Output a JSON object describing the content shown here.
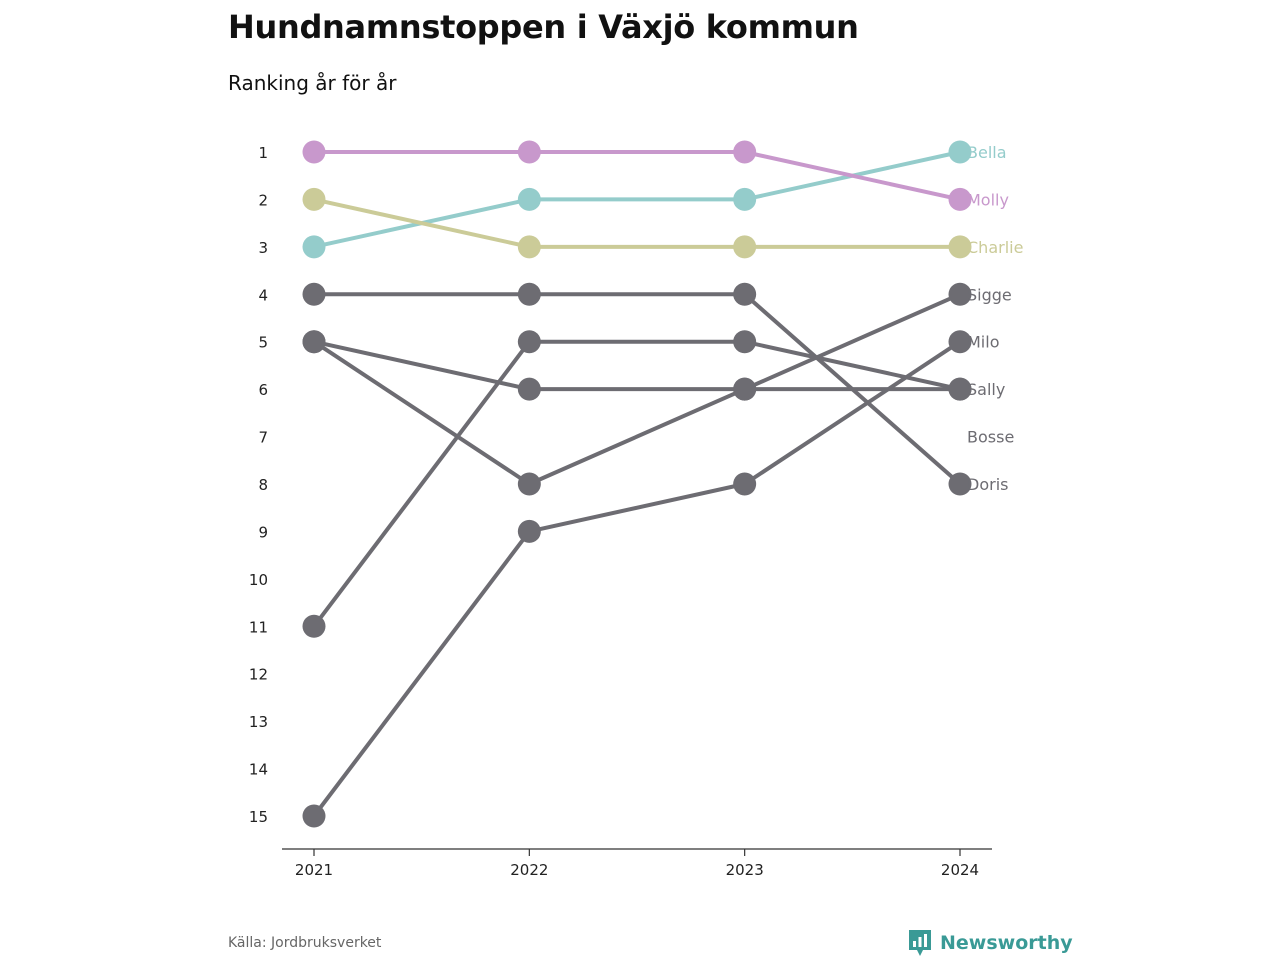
{
  "header": {
    "title": "Hundnamnstoppen i Växjö kommun",
    "subtitle": "Ranking år för år"
  },
  "footer": {
    "source": "Källa: Jordbruksverket",
    "brand": "Newsworthy"
  },
  "colors": {
    "grey": "#6d6c72",
    "bella": "#94cccb",
    "molly": "#c898cc",
    "charlie": "#cbcb98",
    "brand": "#3a9a96"
  },
  "icons": {
    "brand_logo": "newsworthy-logo-icon"
  },
  "chart_data": {
    "type": "line",
    "subtype": "bump",
    "x": [
      "2021",
      "2022",
      "2023",
      "2024"
    ],
    "y_ticks": [
      "1",
      "2",
      "3",
      "4",
      "5",
      "6",
      "7",
      "8",
      "9",
      "10",
      "11",
      "12",
      "13",
      "14",
      "15"
    ],
    "y_reversed": true,
    "ylim": [
      1,
      15
    ],
    "grid": false,
    "series": [
      {
        "name": "Bella",
        "values": [
          3,
          2,
          2,
          1
        ],
        "color": "#94cccb"
      },
      {
        "name": "Molly",
        "values": [
          1,
          1,
          1,
          2
        ],
        "color": "#c898cc"
      },
      {
        "name": "Charlie",
        "values": [
          2,
          3,
          3,
          3
        ],
        "color": "#cbcb98"
      },
      {
        "name": "Sigge",
        "values": [
          5,
          8,
          6,
          4
        ],
        "color": "#6d6c72"
      },
      {
        "name": "Milo",
        "values": [
          15,
          9,
          8,
          5
        ],
        "color": "#6d6c72"
      },
      {
        "name": "Sally",
        "values": [
          5,
          6,
          6,
          6
        ],
        "color": "#6d6c72"
      },
      {
        "name": "Bosse",
        "values": [
          11,
          5,
          5,
          6
        ],
        "color": "#6d6c72"
      },
      {
        "name": "Doris",
        "values": [
          4,
          4,
          4,
          8
        ],
        "color": "#6d6c72"
      }
    ],
    "end_labels": [
      {
        "text": "Bella",
        "rank": 1,
        "color": "#94cccb"
      },
      {
        "text": "Molly",
        "rank": 2,
        "color": "#c898cc"
      },
      {
        "text": "Charlie",
        "rank": 3,
        "color": "#cbcb98"
      },
      {
        "text": "Sigge",
        "rank": 4,
        "color": "#6d6c72"
      },
      {
        "text": "Milo",
        "rank": 5,
        "color": "#6d6c72"
      },
      {
        "text": "Sally",
        "rank": 6,
        "color": "#6d6c72"
      },
      {
        "text": "Bosse",
        "rank": 7,
        "color": "#6d6c72"
      },
      {
        "text": "Doris",
        "rank": 8,
        "color": "#6d6c72"
      }
    ]
  }
}
